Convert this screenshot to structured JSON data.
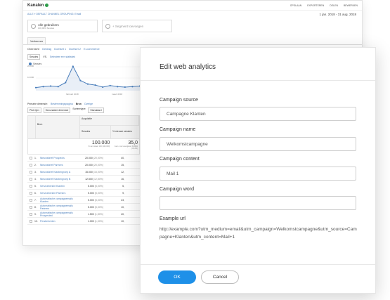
{
  "background": {
    "title": "Kanalen",
    "actions": [
      "OPSLAAN",
      "EXPORTEREN",
      "DELEN",
      "BEWERKEN"
    ],
    "breadcrumb": "ALLE » DEFAULT CHANNEL GROUPING: Email",
    "date_range": "1 jan. 2018 - 31 aug. 2018",
    "segments": [
      {
        "label": "Alle gebruikers",
        "sub": "100,00% Sessies"
      },
      {
        "label": "+ Segment toevoegen",
        "sub": ""
      }
    ],
    "tab": "Verkenner",
    "subtabs": [
      "Overzicht",
      "Gedrag",
      "Doelset 1",
      "Doelset 2",
      "E-commerce"
    ],
    "metric_select": "Sessies",
    "vs_label": "VS.",
    "metric_link": "Selecteer een statistiek",
    "legend_label": "Sessies",
    "chart_ticks": [
      "20.000",
      "10.000"
    ],
    "chart_xlabels": [
      "februari 2018",
      "maart 2018"
    ],
    "primary_dimension_label": "Primaire dimensie:",
    "primary_dimension_link": "Bestemmingspagina",
    "primary_dimension_bron": "Bron",
    "primary_dimension_more": "Overige",
    "filter_buttons": [
      "Plot rijen",
      "Secundaire dimensie",
      "Sorteertype:",
      "Standaard"
    ],
    "col_bron": "Bron",
    "col_acquisitie": "Acquisitie",
    "col_sessions": "Sessies",
    "col_new_sessions": "% nieuwe sessies",
    "total_sessions": "100.000",
    "total_sessions_sub": "% van totaal: 100 (100.000)",
    "total_new": "35,0",
    "total_new_sub": "Gem. voor weergave: 34,89% (0,13%)",
    "rows": [
      {
        "n": "1.",
        "label": "Nieuwsbrief Prospects",
        "sessions": "20.000",
        "pct": "(20,00%)",
        "val2": "40,"
      },
      {
        "n": "2.",
        "label": "Nieuwsbrief Partners",
        "sessions": "20.000",
        "pct": "(20,00%)",
        "val2": "15,"
      },
      {
        "n": "3.",
        "label": "Nieuwsbrief Klantengroep A",
        "sessions": "15.000",
        "pct": "(15,00%)",
        "val2": "12,"
      },
      {
        "n": "4.",
        "label": "Nieuwsbrief Klantengroep B",
        "sessions": "12.500",
        "pct": "(12,50%)",
        "val2": "16,"
      },
      {
        "n": "5.",
        "label": "Servicebericht Klanten",
        "sessions": "5.000",
        "pct": "(5,00%)",
        "val2": "5,"
      },
      {
        "n": "6.",
        "label": "Servicebericht Partners",
        "sessions": "5.000",
        "pct": "(5,00%)",
        "val2": "9,"
      },
      {
        "n": "7.",
        "label": "Automatische campagnemails Klanten",
        "sessions": "5.000",
        "pct": "(5,00%)",
        "val2": "23,"
      },
      {
        "n": "8.",
        "label": "Automatische campagnemails Partners",
        "sessions": "5.000",
        "pct": "(5,00%)",
        "val2": "10,"
      },
      {
        "n": "9.",
        "label": "Automatische campagnemails Prospected",
        "sessions": "1.500",
        "pct": "(1,50%)",
        "val2": "40,"
      },
      {
        "n": "10.",
        "label": "Persberichten",
        "sessions": "1.000",
        "pct": "(1,00%)",
        "val2": "10,"
      }
    ]
  },
  "chart_data": {
    "type": "line",
    "title": "",
    "series": [
      {
        "name": "Sessies",
        "values": [
          3000,
          4000,
          4500,
          4000,
          8000,
          24000,
          10000,
          6500,
          5500,
          3500,
          5000,
          4000,
          3500,
          4000,
          4500
        ]
      }
    ],
    "ylim": [
      0,
      25000
    ],
    "color": "#4a7ebb"
  },
  "modal": {
    "title": "Edit web analytics",
    "fields": [
      {
        "label": "Campaign source",
        "value": "Campagne Klanten",
        "placeholder": ""
      },
      {
        "label": "Campaign name",
        "value": "Welkomstcampagne",
        "placeholder": ""
      },
      {
        "label": "Campaign content",
        "value": "Mail 1",
        "placeholder": ""
      },
      {
        "label": "Campaign word",
        "value": "",
        "placeholder": ""
      }
    ],
    "url_label": "Example url",
    "url_value": "http://example.com?utm_medium=email&utm_campaign=Welkomstcampagne&utm_source=Campagne+Klanten&utm_content=Mail+1",
    "ok_label": "OK",
    "cancel_label": "Cancel",
    "accent_color": "#1e90e8"
  }
}
